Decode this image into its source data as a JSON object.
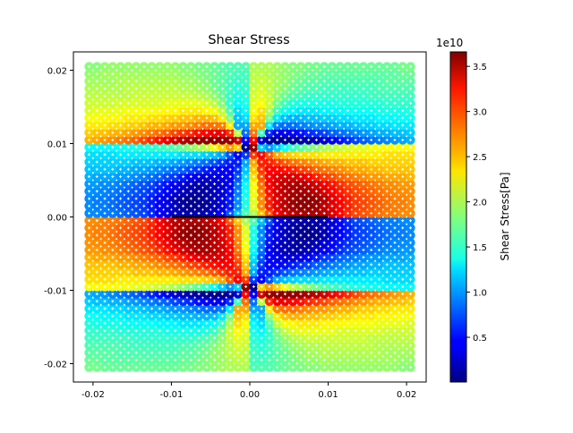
{
  "chart_data": {
    "type": "scatter",
    "title": "Shear Stress",
    "xlabel": "",
    "ylabel": "",
    "xlim": [
      -0.0225,
      0.0225
    ],
    "ylim": [
      -0.0225,
      0.0225
    ],
    "x_ticks": [
      "-0.02",
      "-0.01",
      "0.00",
      "0.01",
      "0.02"
    ],
    "x_tick_values": [
      -0.02,
      -0.01,
      0.0,
      0.01,
      0.02
    ],
    "y_ticks": [
      "0.02",
      "0.01",
      "0.00",
      "-0.01",
      "-0.02"
    ],
    "y_tick_values": [
      0.02,
      0.01,
      0.0,
      -0.01,
      -0.02
    ],
    "grid": false,
    "grid_spec": {
      "start": 0.0005,
      "step": 0.001,
      "count_per_quadrant": 21
    },
    "symmetry": "values mirrored into other quadrants as 2*center - v across x=0 and across y=0",
    "symmetry_center": 1.83,
    "value_units": "1e10 Pa",
    "values_quadrant_xpos_ypos": [
      [
        2.0,
        2.5,
        2.9,
        3.2,
        3.35,
        3.45,
        3.5,
        3.5,
        3.5,
        3.45,
        3.35,
        3.2,
        3.05,
        2.95,
        2.9,
        2.85,
        2.8,
        2.75,
        2.75,
        2.7,
        2.7
      ],
      [
        2.2,
        2.7,
        3.1,
        3.3,
        3.45,
        3.55,
        3.6,
        3.6,
        3.55,
        3.45,
        3.3,
        3.2,
        3.1,
        3.0,
        2.95,
        2.9,
        2.85,
        2.8,
        2.75,
        2.75,
        2.7
      ],
      [
        2.2,
        2.7,
        3.1,
        3.3,
        3.45,
        3.55,
        3.6,
        3.62,
        3.58,
        3.48,
        3.32,
        3.2,
        3.1,
        3.0,
        2.95,
        2.9,
        2.85,
        2.8,
        2.75,
        2.75,
        2.7
      ],
      [
        2.25,
        2.75,
        3.15,
        3.35,
        3.45,
        3.52,
        3.55,
        3.52,
        3.45,
        3.35,
        3.22,
        3.12,
        3.02,
        2.95,
        2.9,
        2.85,
        2.8,
        2.75,
        2.72,
        2.7,
        2.68
      ],
      [
        2.3,
        2.8,
        3.2,
        3.35,
        3.45,
        3.5,
        3.5,
        3.45,
        3.35,
        3.25,
        3.15,
        3.05,
        2.95,
        2.9,
        2.85,
        2.8,
        2.75,
        2.7,
        2.7,
        2.65,
        2.65
      ],
      [
        2.4,
        2.9,
        3.2,
        3.3,
        3.35,
        3.35,
        3.3,
        3.2,
        3.1,
        3.0,
        2.95,
        2.85,
        2.8,
        2.75,
        2.7,
        2.65,
        2.65,
        2.6,
        2.6,
        2.6,
        2.55
      ],
      [
        2.5,
        3.0,
        3.2,
        3.2,
        3.15,
        3.1,
        3.0,
        2.95,
        2.85,
        2.8,
        2.75,
        2.7,
        2.65,
        2.6,
        2.6,
        2.55,
        2.55,
        2.5,
        2.5,
        2.5,
        2.5
      ],
      [
        2.6,
        3.1,
        3.1,
        3.0,
        2.9,
        2.8,
        2.75,
        2.7,
        2.65,
        2.6,
        2.55,
        2.55,
        2.5,
        2.5,
        2.5,
        2.45,
        2.45,
        2.45,
        2.45,
        2.45,
        2.45
      ],
      [
        3.0,
        3.2,
        2.9,
        2.6,
        2.5,
        2.45,
        2.4,
        2.4,
        2.4,
        2.35,
        2.35,
        2.35,
        2.35,
        2.35,
        2.35,
        2.35,
        2.35,
        2.4,
        2.4,
        2.4,
        2.4
      ],
      [
        3.6,
        1.2,
        1.0,
        1.2,
        1.4,
        1.6,
        1.7,
        1.8,
        1.9,
        2.0,
        2.05,
        2.1,
        2.15,
        2.2,
        2.2,
        2.25,
        2.25,
        2.3,
        2.3,
        2.3,
        2.3
      ],
      [
        3.2,
        0.3,
        0.1,
        0.05,
        0.05,
        0.05,
        0.1,
        0.15,
        0.2,
        0.3,
        0.4,
        0.5,
        0.6,
        0.7,
        0.8,
        0.85,
        0.9,
        0.95,
        1.0,
        1.05,
        1.1
      ],
      [
        2.8,
        1.6,
        0.6,
        0.4,
        0.4,
        0.45,
        0.5,
        0.6,
        0.65,
        0.7,
        0.8,
        0.85,
        0.9,
        0.95,
        1.0,
        1.05,
        1.1,
        1.1,
        1.15,
        1.15,
        1.2
      ],
      [
        2.6,
        2.6,
        1.3,
        0.9,
        0.85,
        0.85,
        0.9,
        0.95,
        1.0,
        1.0,
        1.05,
        1.1,
        1.1,
        1.15,
        1.2,
        1.2,
        1.25,
        1.25,
        1.3,
        1.3,
        1.3
      ],
      [
        2.4,
        2.5,
        1.8,
        1.3,
        1.15,
        1.1,
        1.1,
        1.15,
        1.15,
        1.2,
        1.2,
        1.25,
        1.25,
        1.3,
        1.3,
        1.3,
        1.35,
        1.35,
        1.35,
        1.4,
        1.4
      ],
      [
        2.3,
        2.4,
        2.0,
        1.6,
        1.4,
        1.35,
        1.3,
        1.3,
        1.3,
        1.35,
        1.35,
        1.35,
        1.4,
        1.4,
        1.4,
        1.4,
        1.45,
        1.45,
        1.45,
        1.45,
        1.5
      ],
      [
        2.2,
        2.3,
        2.1,
        1.8,
        1.6,
        1.5,
        1.45,
        1.45,
        1.45,
        1.45,
        1.45,
        1.5,
        1.5,
        1.5,
        1.5,
        1.5,
        1.5,
        1.55,
        1.55,
        1.55,
        1.55
      ],
      [
        2.15,
        2.2,
        2.1,
        1.9,
        1.75,
        1.65,
        1.6,
        1.55,
        1.55,
        1.55,
        1.55,
        1.55,
        1.55,
        1.55,
        1.55,
        1.6,
        1.6,
        1.6,
        1.6,
        1.6,
        1.6
      ],
      [
        2.1,
        2.15,
        2.05,
        1.95,
        1.85,
        1.75,
        1.7,
        1.65,
        1.65,
        1.6,
        1.6,
        1.6,
        1.6,
        1.6,
        1.6,
        1.6,
        1.65,
        1.65,
        1.65,
        1.65,
        1.65
      ],
      [
        2.05,
        2.1,
        2.05,
        1.95,
        1.9,
        1.8,
        1.75,
        1.7,
        1.7,
        1.65,
        1.65,
        1.65,
        1.65,
        1.65,
        1.65,
        1.65,
        1.65,
        1.7,
        1.7,
        1.7,
        1.7
      ],
      [
        2.05,
        2.05,
        2.0,
        1.95,
        1.9,
        1.85,
        1.8,
        1.75,
        1.75,
        1.7,
        1.7,
        1.7,
        1.7,
        1.7,
        1.7,
        1.7,
        1.7,
        1.7,
        1.7,
        1.75,
        1.75
      ],
      [
        2.0,
        2.0,
        2.0,
        1.95,
        1.9,
        1.85,
        1.85,
        1.8,
        1.8,
        1.75,
        1.75,
        1.75,
        1.75,
        1.75,
        1.75,
        1.75,
        1.75,
        1.75,
        1.75,
        1.8,
        1.8
      ]
    ],
    "line_segment": {
      "x": [
        -0.01,
        0.01
      ],
      "y": [
        0.0,
        0.0
      ],
      "color": "#000000"
    },
    "marker_overlay_color": "#ffffff",
    "colorbar": {
      "label": "Shear Stress[Pa]",
      "offset_text": "1e10",
      "colormap": "jet",
      "range": [
        0.005,
        3.66
      ],
      "ticks": [
        "0.5",
        "1.0",
        "1.5",
        "2.0",
        "2.5",
        "3.0",
        "3.5"
      ],
      "tick_values": [
        0.5,
        1.0,
        1.5,
        2.0,
        2.5,
        3.0,
        3.5
      ]
    }
  }
}
